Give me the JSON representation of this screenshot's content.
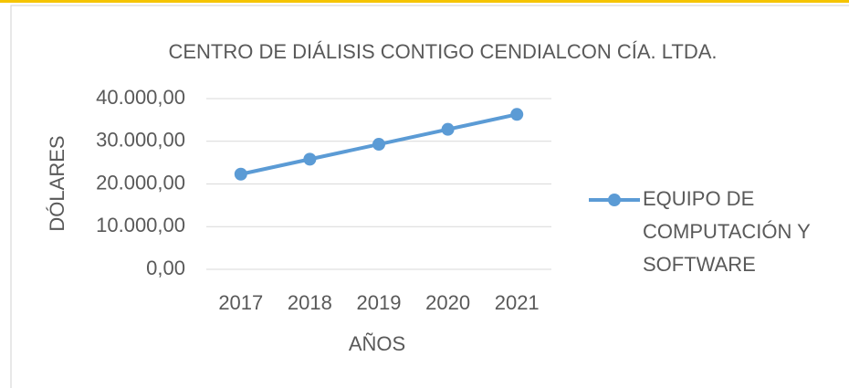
{
  "chart_data": {
    "type": "line",
    "title": "CENTRO DE DIÁLISIS CONTIGO CENDIALCON CÍA. LTDA.",
    "x_label": "AÑOS",
    "y_label": "DÓLARES",
    "categories": [
      "2017",
      "2018",
      "2019",
      "2020",
      "2021"
    ],
    "series": [
      {
        "name": "EQUIPO DE COMPUTACIÓN Y SOFTWARE",
        "color": "#5b9bd5",
        "values": [
          22300,
          25800,
          29300,
          32800,
          36300
        ]
      }
    ],
    "ylim": [
      0,
      40000
    ],
    "yticks": [
      {
        "value": 0,
        "label": "0,00"
      },
      {
        "value": 10000,
        "label": "10.000,00"
      },
      {
        "value": 20000,
        "label": "20.000,00"
      },
      {
        "value": 30000,
        "label": "30.000,00"
      },
      {
        "value": 40000,
        "label": "40.000,00"
      }
    ],
    "grid": true,
    "legend": "right"
  }
}
